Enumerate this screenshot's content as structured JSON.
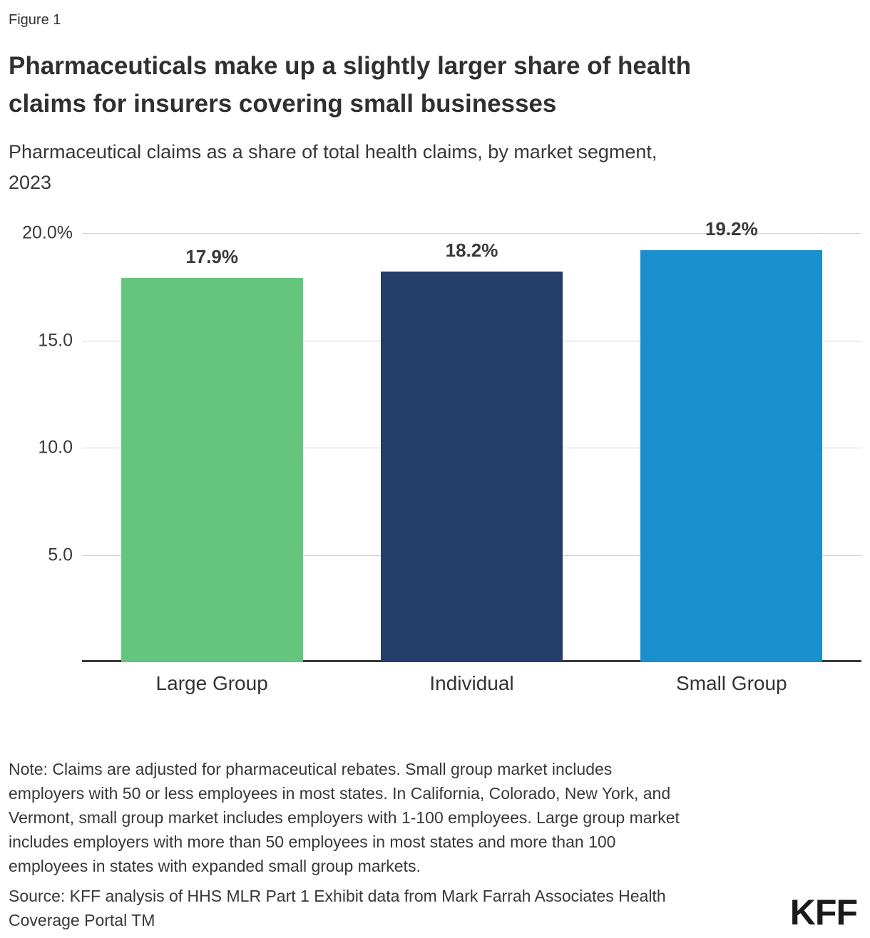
{
  "figure_label": "Figure 1",
  "title": "Pharmaceuticals make up a slightly larger share of health\nclaims for insurers covering small businesses",
  "subtitle": "Pharmaceutical claims as a share of total health claims, by market segment,\n2023",
  "chart_data": {
    "type": "bar",
    "categories": [
      "Large Group",
      "Individual",
      "Small Group"
    ],
    "values": [
      17.9,
      18.2,
      19.2
    ],
    "value_labels": [
      "17.9%",
      "18.2%",
      "19.2%"
    ],
    "series_colors": [
      "#63C57E",
      "#253D69",
      "#1B8ECE"
    ],
    "title": "Pharmaceuticals make up a slightly larger share of health claims for insurers covering small businesses",
    "subtitle": "Pharmaceutical claims as a share of total health claims, by market segment, 2023",
    "xlabel": "",
    "ylabel": "",
    "ylim": [
      0,
      20
    ],
    "yticks": [
      {
        "value": 20,
        "label": "20.0%"
      },
      {
        "value": 15,
        "label": "15.0"
      },
      {
        "value": 10,
        "label": "10.0"
      },
      {
        "value": 5,
        "label": "5.0"
      }
    ],
    "grid": true,
    "gridline_color": "#D4D4D4",
    "axis_line_color": "#3A3A3A",
    "legend": "none"
  },
  "note": "Note: Claims are adjusted for pharmaceutical rebates. Small group market includes\nemployers with 50 or less employees in most states. In California, Colorado, New York, and\nVermont, small group market includes employers with 1-100 employees. Large group market\nincludes employers with more than 50 employees in most states and more than 100\nemployees in states with expanded small group markets.",
  "source": "Source: KFF analysis of HHS MLR Part 1 Exhibit data from Mark Farrah Associates Health\nCoverage Portal TM",
  "logo": "KFF"
}
